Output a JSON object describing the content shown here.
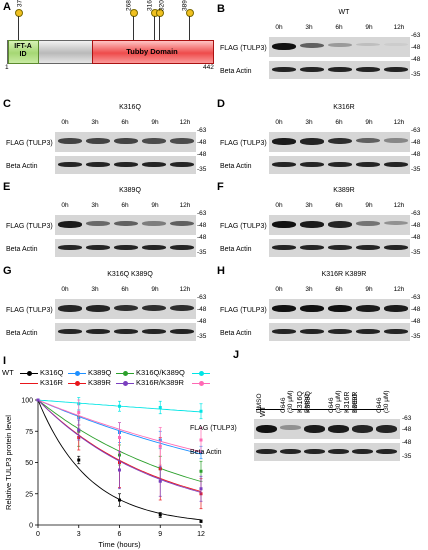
{
  "panel_A": {
    "letter": "A",
    "domains": {
      "ift": "IFT-A ID",
      "tubby": "Tubby Domain"
    },
    "start": "1",
    "end": "442",
    "sites": [
      "37",
      "268",
      "316",
      "320",
      "389"
    ]
  },
  "time_labels": [
    "0h",
    "3h",
    "6h",
    "9h",
    "12h"
  ],
  "row_labels": {
    "flag": "FLAG (TULP3)",
    "actin": "Beta Actin"
  },
  "mw": {
    "m63": "-63",
    "m48": "-48",
    "m35": "-35"
  },
  "blots": [
    {
      "letter": "B",
      "title": "WT",
      "flag": [
        1.0,
        0.6,
        0.3,
        0.12,
        0.05
      ]
    },
    {
      "letter": "C",
      "title": "K316Q",
      "flag": [
        0.75,
        0.75,
        0.75,
        0.7,
        0.7
      ]
    },
    {
      "letter": "D",
      "title": "K316R",
      "flag": [
        0.95,
        0.9,
        0.85,
        0.6,
        0.4
      ]
    },
    {
      "letter": "E",
      "title": "K389Q",
      "flag": [
        0.95,
        0.55,
        0.6,
        0.45,
        0.6
      ]
    },
    {
      "letter": "F",
      "title": "K389R",
      "flag": [
        1.0,
        0.95,
        0.9,
        0.5,
        0.35
      ]
    },
    {
      "letter": "G",
      "title": "K316Q K389Q",
      "flag": [
        0.9,
        0.9,
        0.85,
        0.85,
        0.85
      ]
    },
    {
      "letter": "H",
      "title": "K316R K389R",
      "flag": [
        1.0,
        1.0,
        1.0,
        0.95,
        0.95
      ]
    }
  ],
  "panel_I": {
    "letter": "I",
    "legend": [
      "WT",
      "K316Q",
      "K389Q",
      "K316Q/K389Q",
      "K316R",
      "K389R",
      "K316R/K389R"
    ]
  },
  "chart_data": {
    "type": "line",
    "xlabel": "Time (hours)",
    "ylabel": "Relative TULP3 protein level",
    "x": [
      0,
      3,
      6,
      9,
      12
    ],
    "xlim": [
      0,
      12
    ],
    "ylim": [
      0,
      100
    ],
    "xticks": [
      "0",
      "3",
      "6",
      "9",
      "12"
    ],
    "yticks": [
      "0",
      "25",
      "50",
      "75",
      "100"
    ],
    "legend_position": "top",
    "series": [
      {
        "name": "WT",
        "color": "#000000",
        "values": [
          100,
          52,
          20,
          8,
          3
        ],
        "err": [
          0,
          3,
          5,
          2,
          1
        ]
      },
      {
        "name": "K316Q",
        "color": "#1e90ff",
        "values": [
          100,
          86,
          74,
          68,
          58
        ],
        "err": [
          0,
          6,
          8,
          7,
          5
        ]
      },
      {
        "name": "K389Q",
        "color": "#2ca02c",
        "values": [
          100,
          75,
          56,
          45,
          43
        ],
        "err": [
          0,
          12,
          8,
          10,
          8
        ]
      },
      {
        "name": "K316Q/K389Q",
        "color": "#00e5e5",
        "values": [
          100,
          97,
          95,
          94,
          91
        ],
        "err": [
          0,
          5,
          4,
          5,
          6
        ]
      },
      {
        "name": "K316R",
        "color": "#e8161b",
        "values": [
          100,
          70,
          50,
          45,
          25
        ],
        "err": [
          0,
          10,
          20,
          25,
          12
        ]
      },
      {
        "name": "K389R",
        "color": "#ff69b4",
        "values": [
          100,
          90,
          70,
          63,
          68
        ],
        "err": [
          0,
          10,
          12,
          15,
          10
        ]
      },
      {
        "name": "K316R/K389R",
        "color": "#7b3fbf",
        "values": [
          100,
          76,
          44,
          35,
          29
        ],
        "err": [
          0,
          8,
          15,
          12,
          10
        ]
      }
    ]
  },
  "panel_J": {
    "letter": "J",
    "groups": [
      "WT",
      "K316Q K389Q",
      "K316R K389R"
    ],
    "lanes": [
      "DMSO",
      "C646 (30 μM)",
      "DMSO",
      "C646 (30 μM)",
      "DMSO",
      "C646 (30 μM)"
    ],
    "flag": [
      1.0,
      0.35,
      0.95,
      0.95,
      0.9,
      0.9
    ]
  },
  "colors": {
    "ift": "#b7e08c",
    "tubby": "#f25a5a",
    "band": "#111111",
    "lollipop": "#f0c020"
  }
}
